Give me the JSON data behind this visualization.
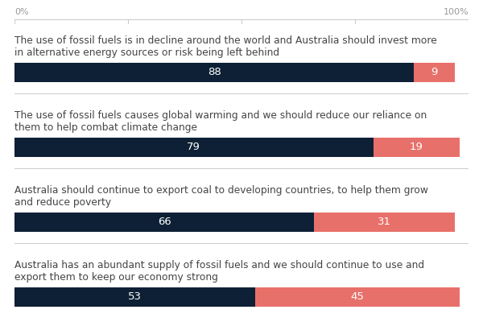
{
  "questions": [
    {
      "label": "The use of fossil fuels is in decline around the world and Australia should invest more\nin alternative energy sources or risk being left behind",
      "agree": 88,
      "disagree": 9
    },
    {
      "label": "The use of fossil fuels causes global warming and we should reduce our reliance on\nthem to help combat climate change",
      "agree": 79,
      "disagree": 19
    },
    {
      "label": "Australia should continue to export coal to developing countries, to help them grow\nand reduce poverty",
      "agree": 66,
      "disagree": 31
    },
    {
      "label": "Australia has an abundant supply of fossil fuels and we should continue to use and\nexport them to keep our economy strong",
      "agree": 53,
      "disagree": 45
    }
  ],
  "agree_color": "#0d2035",
  "disagree_color": "#E8706A",
  "background_color": "#FFFFFF",
  "text_color": "#444444",
  "axis_label_color": "#999999",
  "separator_color": "#cccccc",
  "bar_text_fontsize": 9.5,
  "label_fontsize": 8.8,
  "top_tick_color": "#cccccc"
}
